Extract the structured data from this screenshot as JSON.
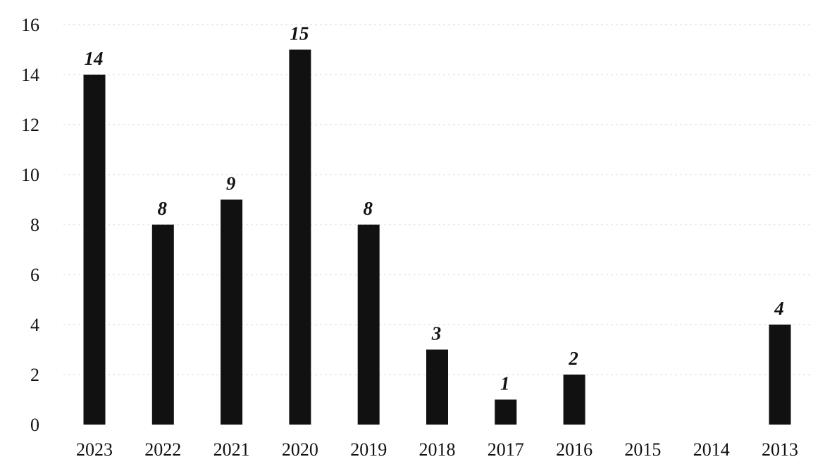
{
  "chart_data": {
    "type": "bar",
    "title": "",
    "xlabel": "",
    "ylabel": "",
    "categories": [
      "2023",
      "2022",
      "2021",
      "2020",
      "2019",
      "2018",
      "2017",
      "2016",
      "2015",
      "2014",
      "2013"
    ],
    "values": [
      14,
      8,
      9,
      15,
      8,
      3,
      1,
      2,
      0,
      0,
      4
    ],
    "data_labels": [
      "14",
      "8",
      "9",
      "15",
      "8",
      "3",
      "1",
      "2",
      "",
      "",
      "4"
    ],
    "ylim": [
      0,
      16
    ],
    "yticks": [
      "0",
      "2",
      "4",
      "6",
      "8",
      "10",
      "12",
      "14",
      "16"
    ],
    "grid": true,
    "legend": "none",
    "bar_color": "#111111"
  }
}
